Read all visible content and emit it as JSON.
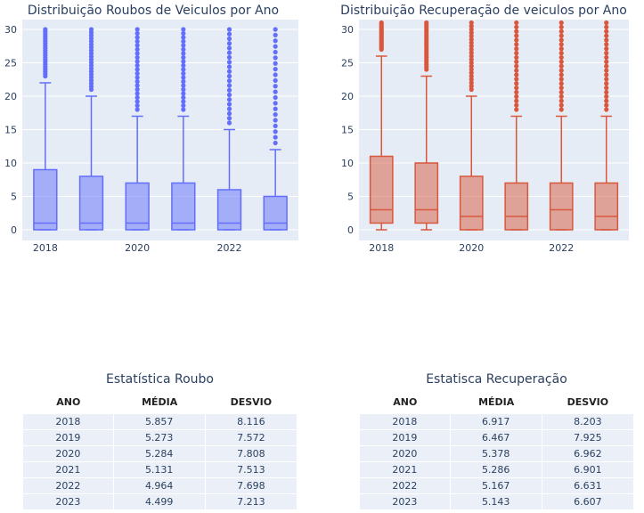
{
  "chart_data": [
    {
      "type": "box",
      "title": "Distribuição Roubos de Veiculos por Ano",
      "color": "#636efa",
      "ylim": [
        0,
        30
      ],
      "yticks": [
        0,
        5,
        10,
        15,
        20,
        25,
        30
      ],
      "xtick_labels": [
        "2018",
        "2020",
        "2022"
      ],
      "categories": [
        "2018",
        "2019",
        "2020",
        "2021",
        "2022",
        "2023"
      ],
      "boxes": [
        {
          "x": "2018",
          "min": 0,
          "q1": 0,
          "median": 1,
          "q3": 9,
          "max": 22
        },
        {
          "x": "2019",
          "min": 0,
          "q1": 0,
          "median": 1,
          "q3": 8,
          "max": 20
        },
        {
          "x": "2020",
          "min": 0,
          "q1": 0,
          "median": 1,
          "q3": 7,
          "max": 17
        },
        {
          "x": "2021",
          "min": 0,
          "q1": 0,
          "median": 1,
          "q3": 7,
          "max": 17
        },
        {
          "x": "2022",
          "min": 0,
          "q1": 0,
          "median": 1,
          "q3": 6,
          "max": 15
        },
        {
          "x": "2023",
          "min": 0,
          "q1": 0,
          "median": 1,
          "q3": 5,
          "max": 12
        }
      ],
      "outliers_upper": 30
    },
    {
      "type": "box",
      "title": "Distribuição Recuperação de veiculos por Ano",
      "color": "#d9573c",
      "ylim": [
        0,
        31
      ],
      "yticks": [
        0,
        5,
        10,
        15,
        20,
        25,
        30
      ],
      "xtick_labels": [
        "2018",
        "2020",
        "2022"
      ],
      "categories": [
        "2018",
        "2019",
        "2020",
        "2021",
        "2022",
        "2023"
      ],
      "boxes": [
        {
          "x": "2018",
          "min": 0,
          "q1": 1,
          "median": 3,
          "q3": 11,
          "max": 26
        },
        {
          "x": "2019",
          "min": 0,
          "q1": 1,
          "median": 3,
          "q3": 10,
          "max": 23
        },
        {
          "x": "2020",
          "min": 0,
          "q1": 0,
          "median": 2,
          "q3": 8,
          "max": 20
        },
        {
          "x": "2021",
          "min": 0,
          "q1": 0,
          "median": 2,
          "q3": 7,
          "max": 17
        },
        {
          "x": "2022",
          "min": 0,
          "q1": 0,
          "median": 3,
          "q3": 7,
          "max": 17
        },
        {
          "x": "2023",
          "min": 0,
          "q1": 0,
          "median": 2,
          "q3": 7,
          "max": 17
        }
      ],
      "outliers_upper": 31
    },
    {
      "type": "table",
      "title": "Estatística Roubo",
      "columns": [
        "ANO",
        "MÉDIA",
        "DESVIO"
      ],
      "rows": [
        [
          "2018",
          "5.857",
          "8.116"
        ],
        [
          "2019",
          "5.273",
          "7.572"
        ],
        [
          "2020",
          "5.284",
          "7.808"
        ],
        [
          "2021",
          "5.131",
          "7.513"
        ],
        [
          "2022",
          "4.964",
          "7.698"
        ],
        [
          "2023",
          "4.499",
          "7.213"
        ]
      ]
    },
    {
      "type": "table",
      "title": "Estatisca Recuperação",
      "columns": [
        "ANO",
        "MÉDIA",
        "DESVIO"
      ],
      "rows": [
        [
          "2018",
          "6.917",
          "8.203"
        ],
        [
          "2019",
          "6.467",
          "7.925"
        ],
        [
          "2020",
          "5.378",
          "6.962"
        ],
        [
          "2021",
          "5.286",
          "6.901"
        ],
        [
          "2022",
          "5.167",
          "6.631"
        ],
        [
          "2023",
          "5.143",
          "6.607"
        ]
      ]
    }
  ],
  "colors": {
    "plot_bg": "#e5ecf6",
    "grid": "#ffffff",
    "axis_text": "#2a3f5f"
  }
}
